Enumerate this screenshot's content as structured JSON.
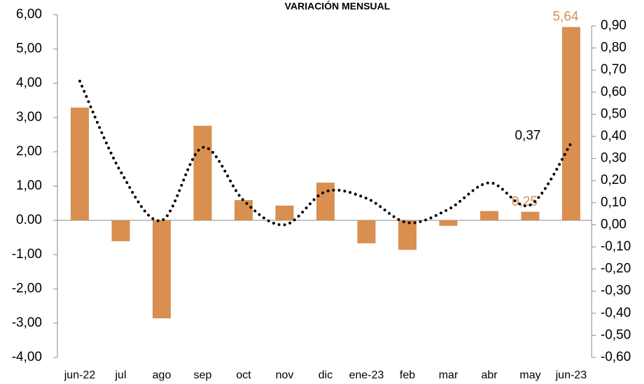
{
  "chart_data": {
    "type": "bar_line",
    "title": "VARIACIÓN MENSUAL",
    "categories": [
      "jun-22",
      "jul",
      "ago",
      "sep",
      "oct",
      "nov",
      "dic",
      "ene-23",
      "feb",
      "mar",
      "abr",
      "may",
      "jun-23"
    ],
    "series": [
      {
        "type": "bar",
        "color": "#d88f50",
        "values": [
          3.29,
          -0.61,
          -2.86,
          2.76,
          0.59,
          0.43,
          1.1,
          -0.67,
          -0.86,
          -0.16,
          0.27,
          0.25,
          5.64
        ],
        "value_labels": [
          null,
          null,
          null,
          null,
          null,
          null,
          null,
          null,
          null,
          null,
          null,
          "0,25",
          "5,64"
        ]
      },
      {
        "type": "line",
        "axis": "y2",
        "color": "#000000",
        "values": [
          0.65,
          0.24,
          0.02,
          0.35,
          0.11,
          0.0,
          0.15,
          0.12,
          0.01,
          0.07,
          0.19,
          0.09,
          0.37
        ],
        "value_labels": [
          null,
          null,
          null,
          null,
          null,
          null,
          null,
          null,
          null,
          null,
          null,
          null,
          "0,37"
        ]
      }
    ],
    "ylim": [
      -4,
      6
    ],
    "yticks": [
      {
        "value": -4,
        "label": "-4,00"
      },
      {
        "value": -3,
        "label": "-3,00"
      },
      {
        "value": -2,
        "label": "-2,00"
      },
      {
        "value": -1,
        "label": "-1,00"
      },
      {
        "value": 0,
        "label": "0.00"
      },
      {
        "value": 1,
        "label": "1,00"
      },
      {
        "value": 2,
        "label": "2,00"
      },
      {
        "value": 3,
        "label": "3,00"
      },
      {
        "value": 4,
        "label": "4,00"
      },
      {
        "value": 5,
        "label": "5,00"
      },
      {
        "value": 6,
        "label": "6,00"
      }
    ],
    "y2lim": [
      -0.6,
      0.9
    ],
    "y2ticks": [
      {
        "value": -0.6,
        "label": "-0,60"
      },
      {
        "value": -0.5,
        "label": "-0,50"
      },
      {
        "value": -0.4,
        "label": "-0,40"
      },
      {
        "value": -0.3,
        "label": "-0,30"
      },
      {
        "value": -0.2,
        "label": "-0,20"
      },
      {
        "value": -0.1,
        "label": "-0,10"
      },
      {
        "value": 0,
        "label": "0,00"
      },
      {
        "value": 0.1,
        "label": "0,10"
      },
      {
        "value": 0.2,
        "label": "0,20"
      },
      {
        "value": 0.3,
        "label": "0,30"
      },
      {
        "value": 0.4,
        "label": "0,40"
      },
      {
        "value": 0.5,
        "label": "0,50"
      },
      {
        "value": 0.6,
        "label": "0,60"
      },
      {
        "value": 0.7,
        "label": "0,70"
      },
      {
        "value": 0.8,
        "label": "0,80"
      },
      {
        "value": 0.9,
        "label": "0,90"
      }
    ]
  }
}
